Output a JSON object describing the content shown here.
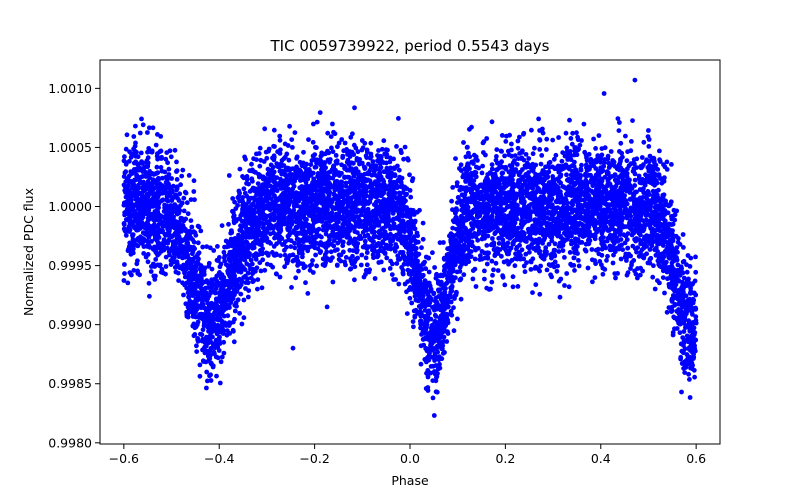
{
  "chart_data": {
    "type": "scatter",
    "title": "TIC 0059739922, period 0.5543 days",
    "xlabel": "Phase",
    "ylabel": "Normalized PDC flux",
    "xlim": [
      -0.65,
      0.65
    ],
    "ylim": [
      0.99799,
      1.00124
    ],
    "xticks": [
      -0.6,
      -0.4,
      -0.2,
      0.0,
      0.2,
      0.4,
      0.6
    ],
    "xtick_labels": [
      "−0.6",
      "−0.4",
      "−0.2",
      "0.0",
      "0.2",
      "0.4",
      "0.6"
    ],
    "yticks": [
      0.998,
      0.9985,
      0.999,
      0.9995,
      1.0,
      1.0005,
      1.001
    ],
    "ytick_labels": [
      "0.9980",
      "0.9985",
      "0.9990",
      "0.9995",
      "1.0000",
      "1.0005",
      "1.0010"
    ],
    "series": [
      {
        "name": "PDC flux",
        "color": "#0000ff",
        "marker": "circle",
        "phase_range": [
          -0.6,
          0.6
        ],
        "baseline_flux": 1.0,
        "scatter_sigma": 0.00025,
        "eclipses": [
          {
            "center_phase": -0.415,
            "depth": 0.00095,
            "width": 0.04
          },
          {
            "center_phase": 0.05,
            "depth": 0.0011,
            "width": 0.03
          },
          {
            "center_phase": 0.585,
            "depth": 0.001,
            "width": 0.03
          }
        ],
        "approx_point_count": 7500
      }
    ]
  }
}
